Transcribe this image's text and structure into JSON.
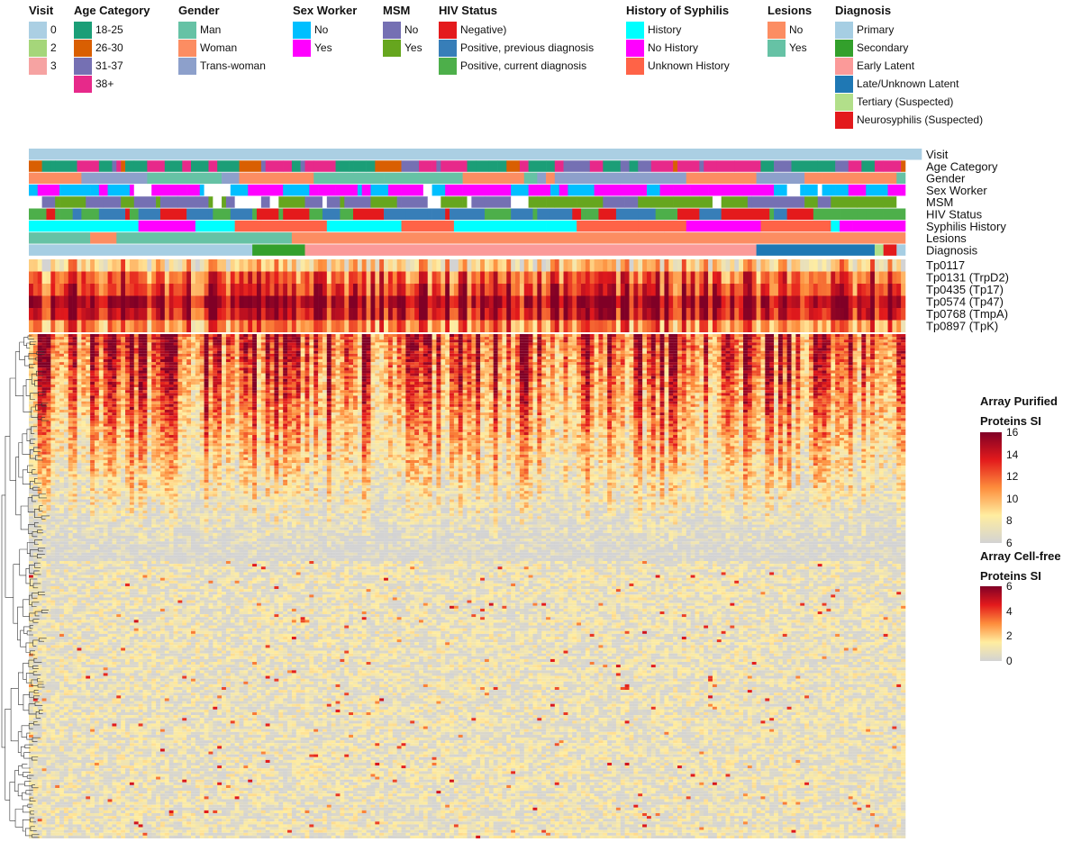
{
  "legends": [
    {
      "title": "Visit",
      "items": [
        {
          "label": "0",
          "color": "#abcfe3"
        },
        {
          "label": "2",
          "color": "#a5d67a"
        },
        {
          "label": "3",
          "color": "#f6a3a2"
        }
      ]
    },
    {
      "title": "Age Category",
      "items": [
        {
          "label": "18-25",
          "color": "#1b9e77"
        },
        {
          "label": "26-30",
          "color": "#d95f02"
        },
        {
          "label": "31-37",
          "color": "#7570b3"
        },
        {
          "label": "38+",
          "color": "#e7298a"
        }
      ]
    },
    {
      "title": "Gender",
      "items": [
        {
          "label": "Man",
          "color": "#66c2a5"
        },
        {
          "label": "Woman",
          "color": "#fc8d62"
        },
        {
          "label": "Trans-woman",
          "color": "#8da0cb"
        }
      ]
    },
    {
      "title": "Sex Worker",
      "items": [
        {
          "label": "No",
          "color": "#00bfff"
        },
        {
          "label": "Yes",
          "color": "#ff00ff"
        }
      ]
    },
    {
      "title": "MSM",
      "items": [
        {
          "label": "No",
          "color": "#7570b3"
        },
        {
          "label": "Yes",
          "color": "#66a61e"
        }
      ]
    },
    {
      "title": "HIV Status",
      "items": [
        {
          "label": "Negative)",
          "color": "#e41a1c"
        },
        {
          "label": "Positive, previous diagnosis",
          "color": "#377eb8"
        },
        {
          "label": "Positive, current diagnosis",
          "color": "#4daf4a"
        }
      ]
    },
    {
      "title": "History of Syphilis",
      "items": [
        {
          "label": "History",
          "color": "#00ffff"
        },
        {
          "label": "No History",
          "color": "#ff00ff"
        },
        {
          "label": "Unknown History",
          "color": "#ff6347"
        }
      ]
    },
    {
      "title": "Lesions",
      "items": [
        {
          "label": "No",
          "color": "#fc8d62"
        },
        {
          "label": "Yes",
          "color": "#66c2a5"
        }
      ]
    },
    {
      "title": "Diagnosis",
      "items": [
        {
          "label": "Primary",
          "color": "#a6cee3"
        },
        {
          "label": "Secondary",
          "color": "#33a02c"
        },
        {
          "label": "Early Latent",
          "color": "#fb9a99"
        },
        {
          "label": "Late/Unknown Latent",
          "color": "#1f78b4"
        },
        {
          "label": "Tertiary (Suspected)",
          "color": "#b2df8a"
        },
        {
          "label": "Neurosyphilis (Suspected)",
          "color": "#e31a1c"
        }
      ]
    }
  ],
  "annotation_rows": [
    "Visit",
    "Age Category",
    "Gender",
    "Sex Worker",
    "MSM",
    "HIV Status",
    "Syphilis History",
    "Lesions",
    "Diagnosis"
  ],
  "protein_rows": [
    "Tp0117",
    "Tp0131 (TrpD2)",
    "Tp0435 (Tp17)",
    "Tp0574 (Tp47)",
    "Tp0768 (TmpA)",
    "Tp0897 (TpK)"
  ],
  "color_scales": [
    {
      "title_line1": "Array Purified",
      "title_line2": "Proteins SI",
      "ticks": [
        "16",
        "14",
        "12",
        "10",
        "8",
        "6"
      ],
      "range": [
        6,
        16
      ],
      "colors": [
        "#800026",
        "#e31a1c",
        "#fd8d3c",
        "#ffeda0",
        "#d3d3d3"
      ]
    },
    {
      "title_line1": "Array Cell-free",
      "title_line2": "Proteins SI",
      "ticks": [
        "6",
        "4",
        "2",
        "0"
      ],
      "range": [
        0,
        6
      ],
      "colors": [
        "#800026",
        "#e31a1c",
        "#fd8d3c",
        "#ffeda0",
        "#d3d3d3"
      ]
    }
  ],
  "chart_data": {
    "type": "heatmap",
    "n_samples": 200,
    "annotation_tracks": {
      "Visit": [
        {
          "category": "0",
          "count": 200
        }
      ],
      "Diagnosis": [
        {
          "category": "Primary",
          "count": 51
        },
        {
          "category": "Secondary",
          "count": 12
        },
        {
          "category": "Early Latent",
          "count": 103
        },
        {
          "category": "Late/Unknown Latent",
          "count": 27
        },
        {
          "category": "Tertiary (Suspected)",
          "count": 2
        },
        {
          "category": "Neurosyphilis (Suspected)",
          "count": 3
        },
        {
          "category": "Primary",
          "count": 2
        }
      ],
      "Lesions": [
        {
          "category": "Yes",
          "count": 14
        },
        {
          "category": "No",
          "count": 6
        },
        {
          "category": "Yes",
          "count": 40
        },
        {
          "category": "No",
          "count": 140
        }
      ]
    },
    "purified_protein_signal": {
      "rows": [
        "Tp0117",
        "Tp0131 (TrpD2)",
        "Tp0435 (Tp17)",
        "Tp0574 (Tp47)",
        "Tp0768 (TmpA)",
        "Tp0897 (TpK)"
      ],
      "typical_si": [
        9,
        12,
        13,
        15,
        14,
        11
      ],
      "scale": [
        6,
        16
      ]
    },
    "cell_free_protein_signal": {
      "n_rows": 180,
      "scale": [
        0,
        6
      ],
      "pattern": "upper rows strongly reactive in many samples; lower rows mostly 0-2"
    }
  }
}
